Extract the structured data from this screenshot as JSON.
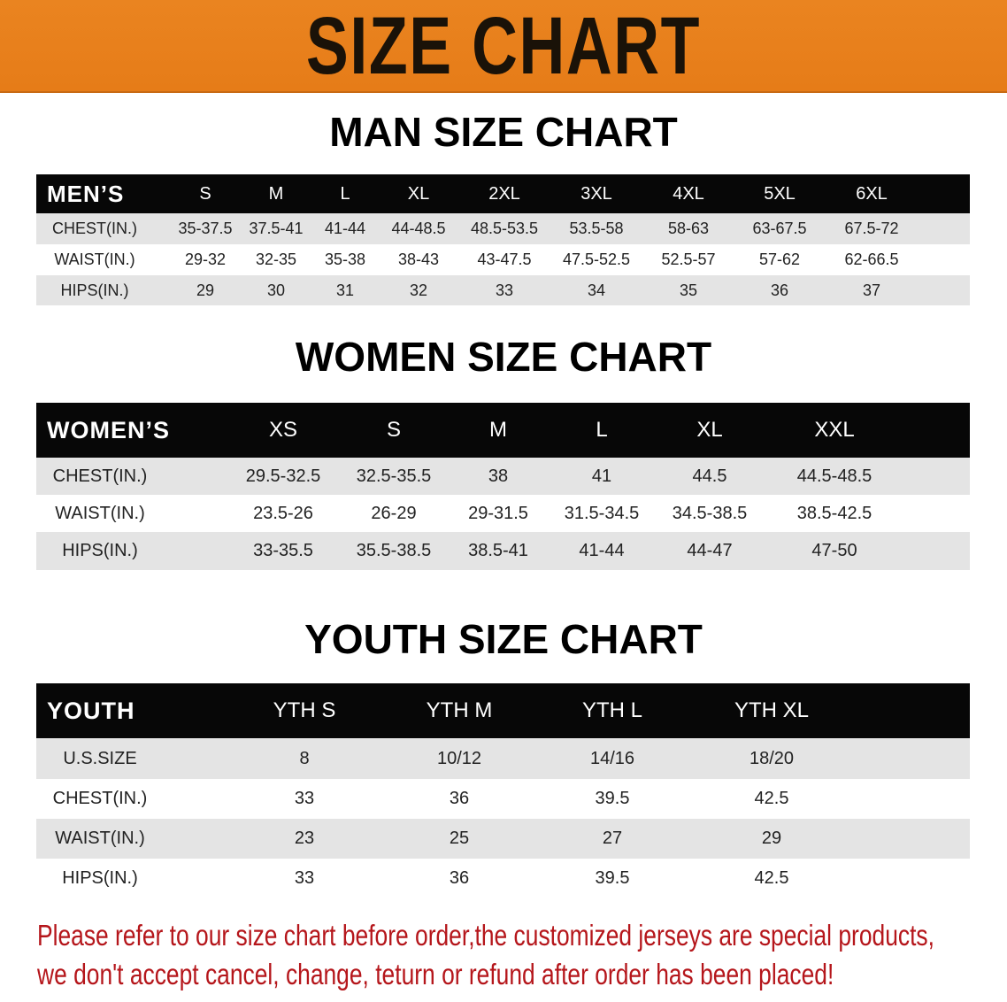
{
  "banner": {
    "title": "SIZE CHART",
    "color": "#e8801e"
  },
  "men": {
    "title": "MAN SIZE CHART",
    "header_label": "MEN’S",
    "sizes": [
      "S",
      "M",
      "L",
      "XL",
      "2XL",
      "3XL",
      "4XL",
      "5XL",
      "6XL"
    ],
    "rows": [
      {
        "label": "CHEST(IN.)",
        "values": [
          "35-37.5",
          "37.5-41",
          "41-44",
          "44-48.5",
          "48.5-53.5",
          "53.5-58",
          "58-63",
          "63-67.5",
          "67.5-72"
        ]
      },
      {
        "label": "WAIST(IN.)",
        "values": [
          "29-32",
          "32-35",
          "35-38",
          "38-43",
          "43-47.5",
          "47.5-52.5",
          "52.5-57",
          "57-62",
          "62-66.5"
        ]
      },
      {
        "label": "HIPS(IN.)",
        "values": [
          "29",
          "30",
          "31",
          "32",
          "33",
          "34",
          "35",
          "36",
          "37"
        ]
      }
    ]
  },
  "women": {
    "title": "WOMEN SIZE CHART",
    "header_label": "WOMEN’S",
    "sizes": [
      "XS",
      "S",
      "M",
      "L",
      "XL",
      "XXL"
    ],
    "rows": [
      {
        "label": "CHEST(IN.)",
        "values": [
          "29.5-32.5",
          "32.5-35.5",
          "38",
          "41",
          "44.5",
          "44.5-48.5"
        ]
      },
      {
        "label": "WAIST(IN.)",
        "values": [
          "23.5-26",
          "26-29",
          "29-31.5",
          "31.5-34.5",
          "34.5-38.5",
          "38.5-42.5"
        ]
      },
      {
        "label": "HIPS(IN.)",
        "values": [
          "33-35.5",
          "35.5-38.5",
          "38.5-41",
          "41-44",
          "44-47",
          "47-50"
        ]
      }
    ]
  },
  "youth": {
    "title": "YOUTH SIZE CHART",
    "header_label": "YOUTH",
    "sizes": [
      "YTH S",
      "YTH M",
      "YTH L",
      "YTH XL"
    ],
    "rows": [
      {
        "label": "U.S.SIZE",
        "values": [
          "8",
          "10/12",
          "14/16",
          "18/20"
        ]
      },
      {
        "label": "CHEST(IN.)",
        "values": [
          "33",
          "36",
          "39.5",
          "42.5"
        ]
      },
      {
        "label": "WAIST(IN.)",
        "values": [
          "23",
          "25",
          "27",
          "29"
        ]
      },
      {
        "label": "HIPS(IN.)",
        "values": [
          "33",
          "36",
          "39.5",
          "42.5"
        ]
      }
    ]
  },
  "footer": {
    "line1": "Please refer to our size chart before order,the customized jerseys are special products,",
    "line2": "we don't accept cancel, change, teturn or refund after order has been placed!",
    "color": "#b5161b"
  }
}
